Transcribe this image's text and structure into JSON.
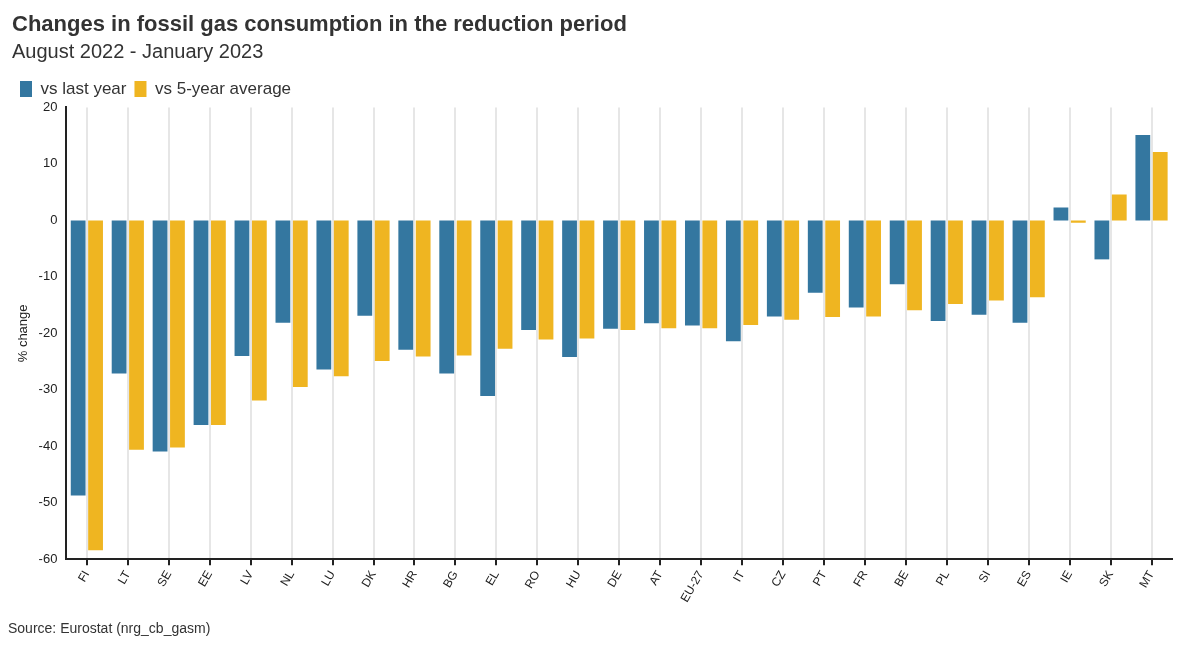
{
  "chart_data": {
    "type": "bar",
    "title": "Changes in fossil gas consumption in the reduction period",
    "subtitle": "August 2022 - January 2023",
    "ylabel": "% change",
    "categories": [
      "FI",
      "LT",
      "SE",
      "EE",
      "LV",
      "NL",
      "LU",
      "DK",
      "HR",
      "BG",
      "EL",
      "RO",
      "HU",
      "DE",
      "AT",
      "EU-27",
      "IT",
      "CZ",
      "PT",
      "FR",
      "BE",
      "PL",
      "SI",
      "ES",
      "IE",
      "SK",
      "MT"
    ],
    "series": [
      {
        "name": "vs last year",
        "color": "#3477a0",
        "values": [
          -48.7,
          -27.1,
          -40.9,
          -36.2,
          -24.0,
          -18.1,
          -26.4,
          -16.9,
          -22.9,
          -27.1,
          -31.1,
          -19.4,
          -24.2,
          -19.2,
          -18.2,
          -18.6,
          -21.4,
          -17.0,
          -12.8,
          -15.4,
          -11.3,
          -17.8,
          -16.7,
          -18.1,
          2.3,
          -6.9,
          15.1
        ]
      },
      {
        "name": "vs 5-year average",
        "color": "#efb521",
        "values": [
          -58.4,
          -40.6,
          -40.2,
          -36.2,
          -31.9,
          -29.5,
          -27.6,
          -24.9,
          -24.1,
          -23.9,
          -22.7,
          -21.1,
          -20.9,
          -19.4,
          -19.1,
          -19.1,
          -18.5,
          -17.6,
          -17.1,
          -17.0,
          -15.9,
          -14.8,
          -14.2,
          -13.6,
          -0.4,
          4.6,
          12.1
        ]
      }
    ],
    "ylim": [
      -60,
      20
    ],
    "yticks": [
      -60,
      -50,
      -40,
      -30,
      -20,
      -10,
      0,
      10,
      20
    ],
    "grid": "x",
    "legend": "top left",
    "annotations": [
      "Source: Eurostat (nrg_cb_gasm)"
    ]
  }
}
